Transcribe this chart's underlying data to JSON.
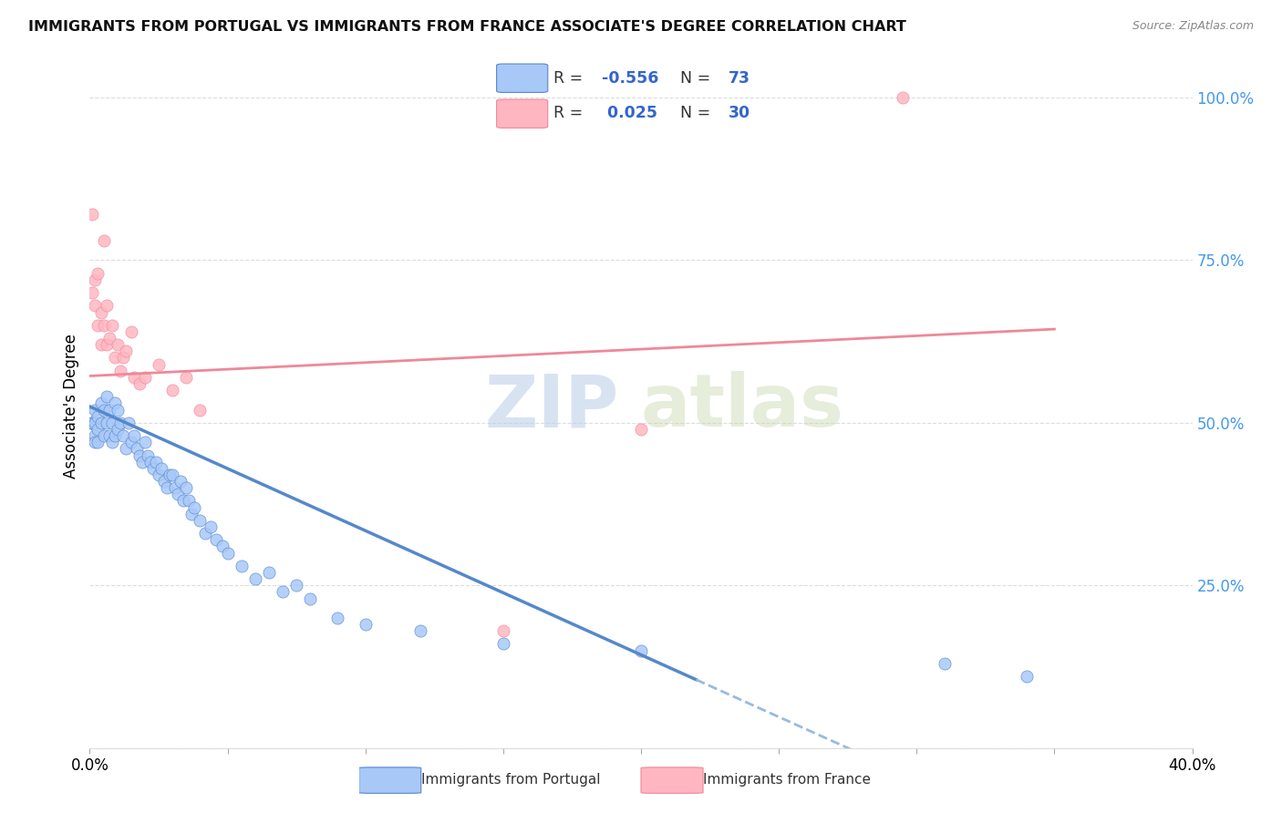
{
  "title": "IMMIGRANTS FROM PORTUGAL VS IMMIGRANTS FROM FRANCE ASSOCIATE'S DEGREE CORRELATION CHART",
  "source": "Source: ZipAtlas.com",
  "ylabel": "Associate's Degree",
  "xlim": [
    0.0,
    0.4
  ],
  "ylim": [
    0.0,
    1.05
  ],
  "xticks": [
    0.0,
    0.05,
    0.1,
    0.15,
    0.2,
    0.25,
    0.3,
    0.35,
    0.4
  ],
  "ytick_positions_right": [
    0.0,
    0.25,
    0.5,
    0.75,
    1.0
  ],
  "ytick_labels_right": [
    "",
    "25.0%",
    "50.0%",
    "75.0%",
    "100.0%"
  ],
  "legend_R1": "-0.556",
  "legend_N1": "73",
  "legend_R2": "0.025",
  "legend_N2": "30",
  "color_portugal": "#a8c8f8",
  "color_france": "#ffb6c1",
  "color_trendline_portugal": "#5588cc",
  "color_trendline_france": "#ee8899",
  "color_trendline_portugal_dashed": "#99bbdd",
  "watermark_zip": "ZIP",
  "watermark_atlas": "atlas",
  "background_color": "#ffffff",
  "portugal_x": [
    0.001,
    0.001,
    0.001,
    0.001,
    0.001,
    0.002,
    0.002,
    0.002,
    0.002,
    0.003,
    0.003,
    0.003,
    0.004,
    0.004,
    0.005,
    0.005,
    0.006,
    0.006,
    0.007,
    0.007,
    0.008,
    0.008,
    0.009,
    0.009,
    0.01,
    0.01,
    0.011,
    0.012,
    0.013,
    0.014,
    0.015,
    0.016,
    0.017,
    0.018,
    0.019,
    0.02,
    0.021,
    0.022,
    0.023,
    0.024,
    0.025,
    0.026,
    0.027,
    0.028,
    0.029,
    0.03,
    0.031,
    0.032,
    0.033,
    0.034,
    0.035,
    0.036,
    0.037,
    0.038,
    0.04,
    0.042,
    0.044,
    0.046,
    0.048,
    0.05,
    0.055,
    0.06,
    0.065,
    0.07,
    0.075,
    0.08,
    0.09,
    0.1,
    0.12,
    0.15,
    0.2,
    0.31,
    0.34
  ],
  "portugal_y": [
    0.5,
    0.5,
    0.5,
    0.5,
    0.5,
    0.52,
    0.5,
    0.48,
    0.47,
    0.51,
    0.49,
    0.47,
    0.53,
    0.5,
    0.52,
    0.48,
    0.54,
    0.5,
    0.48,
    0.52,
    0.5,
    0.47,
    0.53,
    0.48,
    0.52,
    0.49,
    0.5,
    0.48,
    0.46,
    0.5,
    0.47,
    0.48,
    0.46,
    0.45,
    0.44,
    0.47,
    0.45,
    0.44,
    0.43,
    0.44,
    0.42,
    0.43,
    0.41,
    0.4,
    0.42,
    0.42,
    0.4,
    0.39,
    0.41,
    0.38,
    0.4,
    0.38,
    0.36,
    0.37,
    0.35,
    0.33,
    0.34,
    0.32,
    0.31,
    0.3,
    0.28,
    0.26,
    0.27,
    0.24,
    0.25,
    0.23,
    0.2,
    0.19,
    0.18,
    0.16,
    0.15,
    0.13,
    0.11
  ],
  "france_x": [
    0.001,
    0.001,
    0.002,
    0.002,
    0.003,
    0.003,
    0.004,
    0.004,
    0.005,
    0.005,
    0.006,
    0.006,
    0.007,
    0.008,
    0.009,
    0.01,
    0.011,
    0.012,
    0.013,
    0.015,
    0.016,
    0.018,
    0.02,
    0.025,
    0.03,
    0.035,
    0.04,
    0.15,
    0.2,
    0.295
  ],
  "france_y": [
    0.82,
    0.7,
    0.72,
    0.68,
    0.65,
    0.73,
    0.67,
    0.62,
    0.78,
    0.65,
    0.62,
    0.68,
    0.63,
    0.65,
    0.6,
    0.62,
    0.58,
    0.6,
    0.61,
    0.64,
    0.57,
    0.56,
    0.57,
    0.59,
    0.55,
    0.57,
    0.52,
    0.18,
    0.49,
    1.0
  ],
  "trendline_pt_x0": 0.0,
  "trendline_pt_y0": 0.525,
  "trendline_pt_x1": 0.22,
  "trendline_pt_y1": 0.105,
  "trendline_dash_x0": 0.22,
  "trendline_dash_x1": 0.4,
  "trendline_fr_x0": 0.0,
  "trendline_fr_y0": 0.572,
  "trendline_fr_x1": 0.35,
  "trendline_fr_y1": 0.644
}
